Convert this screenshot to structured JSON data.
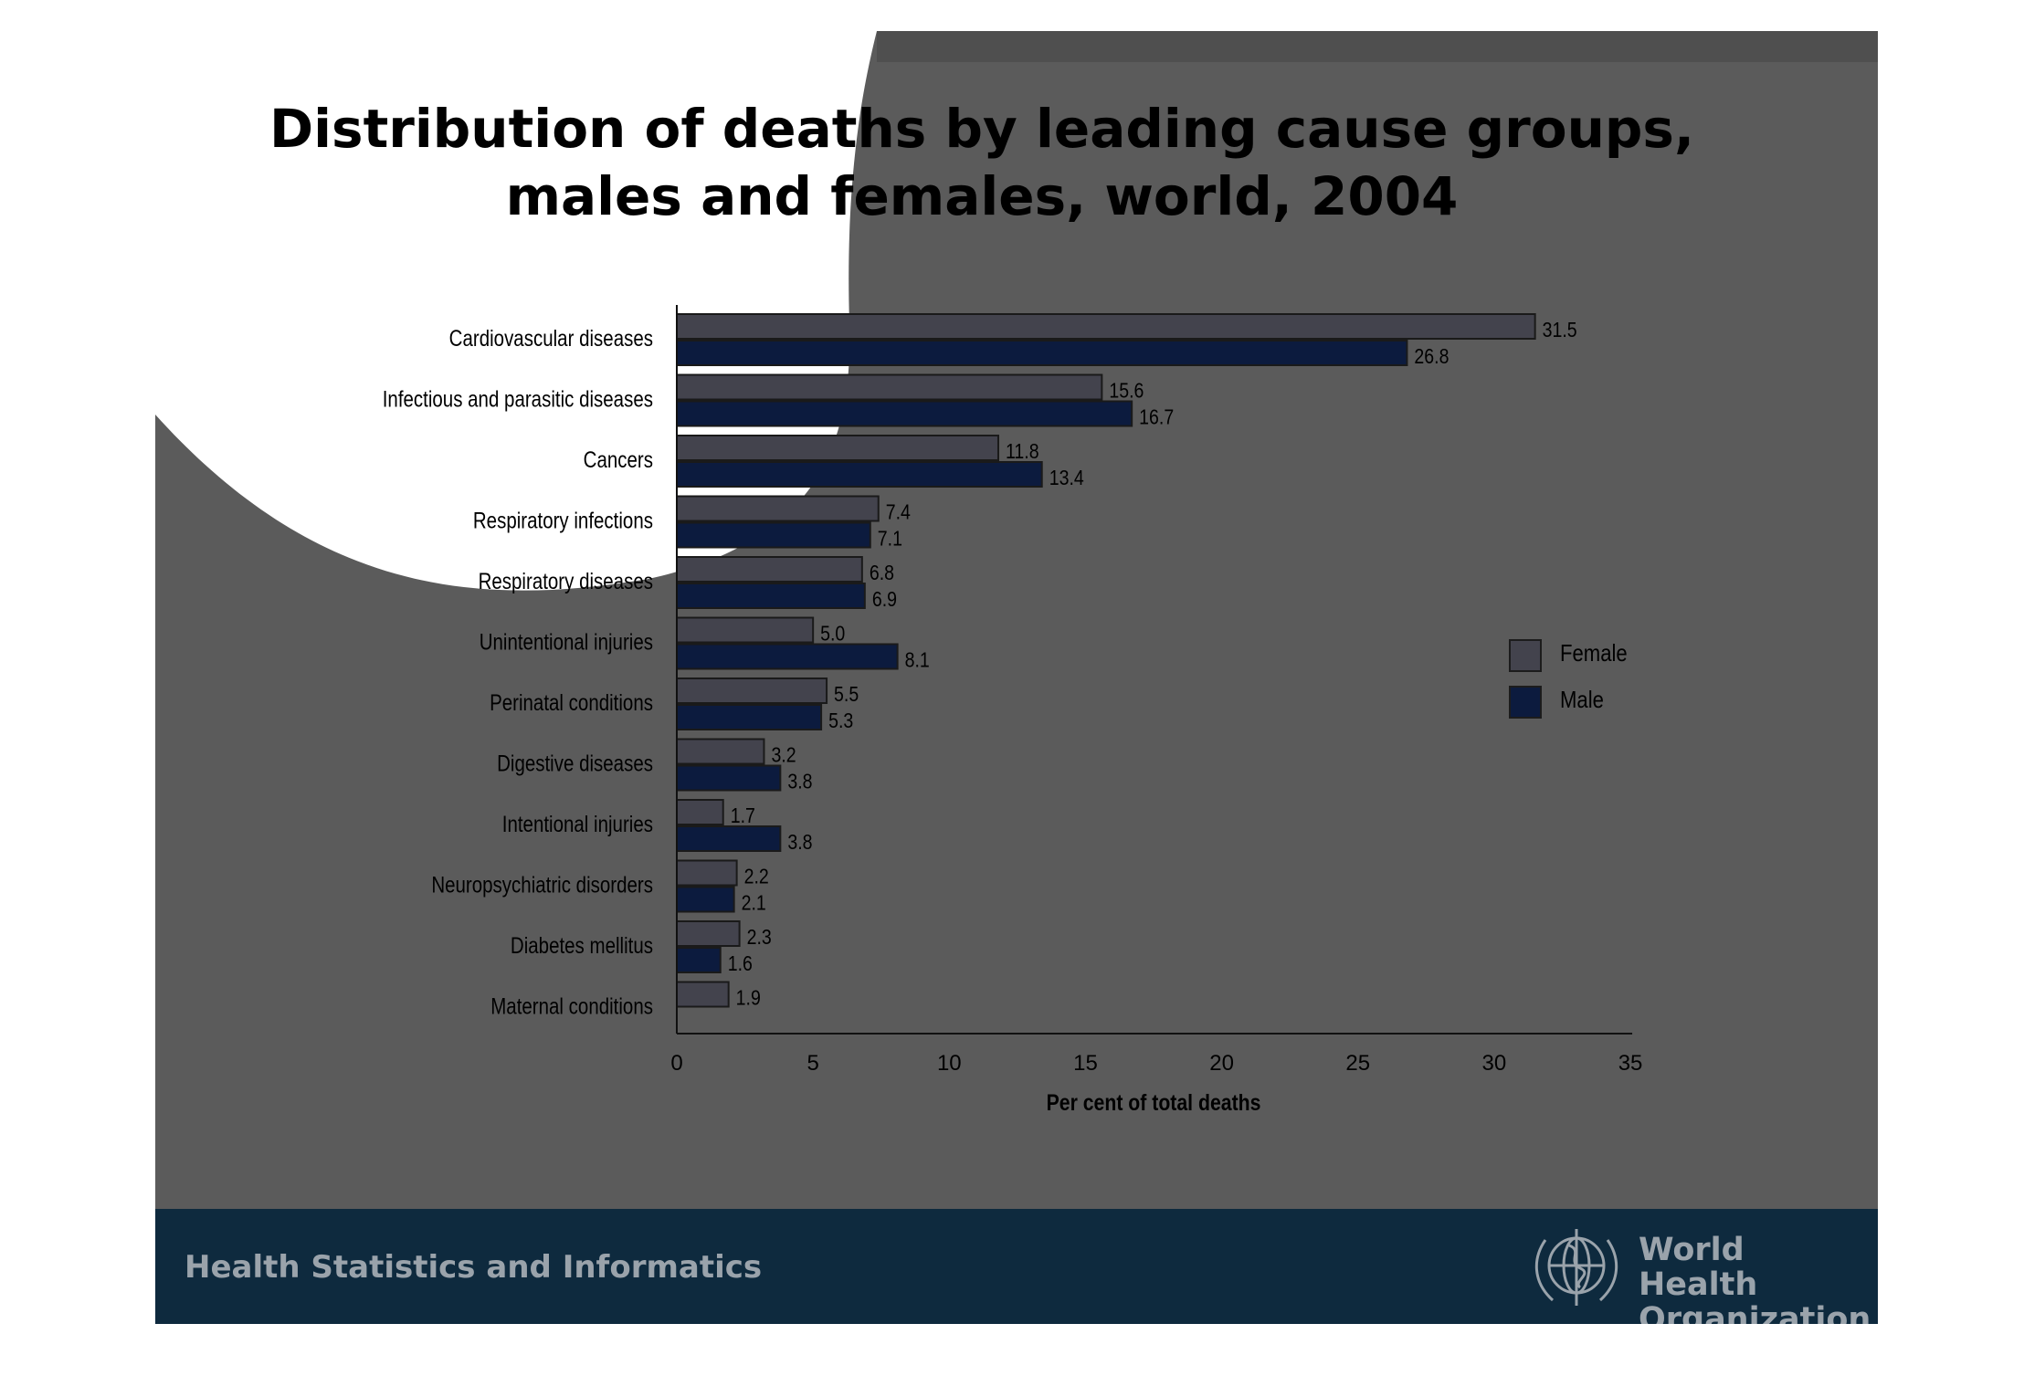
{
  "slide": {
    "footer_text": "Health Statistics and Informatics",
    "org_name_line1": "World Health",
    "org_name_line2": "Organization",
    "logo_icon": "who-emblem-icon"
  },
  "chart_data": {
    "type": "bar",
    "orientation": "horizontal",
    "title_lines": [
      "Distribution of deaths by leading cause groups,",
      "males and females, world, 2004"
    ],
    "xlabel": "Per cent of total deaths",
    "ylabel": "",
    "xlim": [
      0,
      35
    ],
    "xticks": [
      0,
      5,
      10,
      15,
      20,
      25,
      30,
      35
    ],
    "grid": false,
    "legend_position": "right",
    "categories": [
      "Cardiovascular diseases",
      "Infectious and parasitic diseases",
      "Cancers",
      "Respiratory infections",
      "Respiratory diseases",
      "Unintentional injuries",
      "Perinatal conditions",
      "Digestive diseases",
      "Intentional injuries",
      "Neuropsychiatric disorders",
      "Diabetes mellitus",
      "Maternal conditions"
    ],
    "series": [
      {
        "name": "Female",
        "color": "#43434d",
        "values": [
          31.5,
          15.6,
          11.8,
          7.4,
          6.8,
          5.0,
          5.5,
          3.2,
          1.7,
          2.2,
          2.3,
          1.9
        ],
        "labels": [
          "31.5",
          "15.6",
          "11.8",
          "7.4",
          "6.8",
          "5.0",
          "5.5",
          "3.2",
          "1.7",
          "2.2",
          "2.3",
          "1.9"
        ]
      },
      {
        "name": "Male",
        "color": "#0c1b3e",
        "values": [
          26.8,
          16.7,
          13.4,
          7.1,
          6.9,
          8.1,
          5.3,
          3.8,
          3.8,
          2.1,
          1.6,
          null
        ],
        "labels": [
          "26.8",
          "16.7",
          "13.4",
          "7.1",
          "6.9",
          "8.1",
          "5.3",
          "3.8",
          "3.8",
          "2.1",
          "1.6",
          ""
        ]
      }
    ]
  }
}
